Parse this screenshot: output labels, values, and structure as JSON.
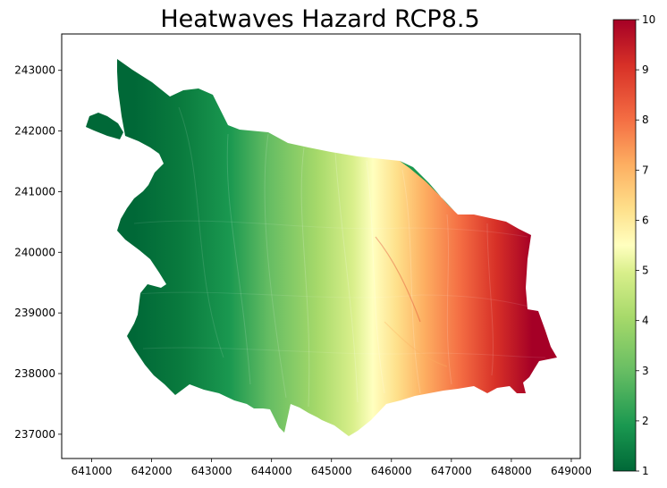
{
  "chart_data": {
    "type": "heatmap",
    "title": "Heatwaves Hazard RCP8.5",
    "xlabel": "",
    "ylabel": "",
    "xlim": [
      640500,
      649150
    ],
    "ylim": [
      236600,
      243600
    ],
    "x_ticks": [
      641000,
      642000,
      643000,
      644000,
      645000,
      646000,
      647000,
      648000,
      649000
    ],
    "y_ticks": [
      237000,
      238000,
      239000,
      240000,
      241000,
      242000,
      243000
    ],
    "x_tick_labels": [
      "641000",
      "642000",
      "643000",
      "644000",
      "645000",
      "646000",
      "647000",
      "648000",
      "649000"
    ],
    "y_tick_labels": [
      "237000",
      "238000",
      "239000",
      "240000",
      "241000",
      "242000",
      "243000"
    ],
    "colorbar": {
      "colormap": "RdYlGn_r",
      "range": [
        1,
        10
      ],
      "ticks": [
        1,
        2,
        3,
        4,
        5,
        6,
        7,
        8,
        9,
        10
      ],
      "tick_labels": [
        "1",
        "2",
        "3",
        "4",
        "5",
        "6",
        "7",
        "8",
        "9",
        "10"
      ]
    },
    "grid": false,
    "value_trend": "hazard increases from west (≈1) to east (≈10)"
  }
}
